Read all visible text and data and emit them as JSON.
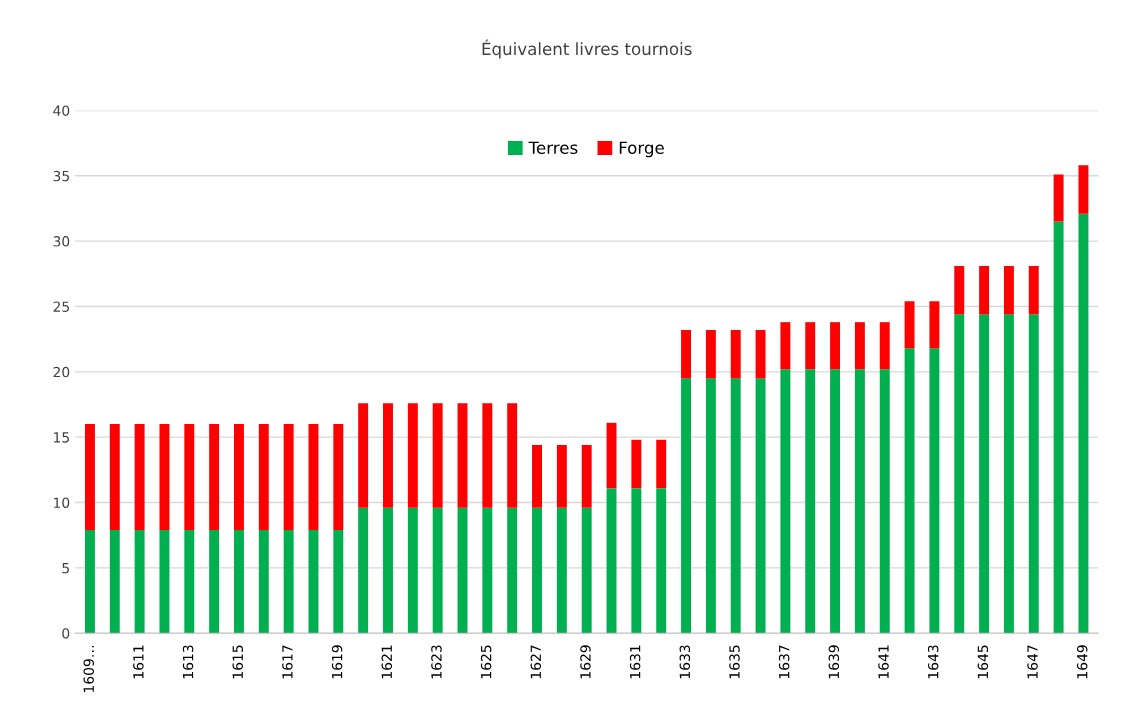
{
  "chart_data": {
    "type": "bar",
    "title": "Équivalent livres tournois",
    "stacked": true,
    "categories": [
      "1609…",
      null,
      "1611",
      null,
      "1613",
      null,
      "1615",
      null,
      "1617",
      null,
      "1619",
      null,
      "1621",
      null,
      "1623",
      null,
      "1625",
      null,
      "1627",
      null,
      "1629",
      null,
      "1631",
      null,
      "1633",
      null,
      "1635",
      null,
      "1637",
      null,
      "1639",
      null,
      "1641",
      null,
      "1643",
      null,
      "1645",
      null,
      "1647",
      null,
      "1649"
    ],
    "series": [
      {
        "name": "Terres",
        "color": "#00b050",
        "values": [
          7.9,
          7.9,
          7.9,
          7.9,
          7.9,
          7.9,
          7.9,
          7.9,
          7.9,
          7.9,
          7.9,
          9.6,
          9.6,
          9.6,
          9.6,
          9.6,
          9.6,
          9.6,
          9.6,
          9.6,
          9.6,
          11.1,
          11.1,
          11.1,
          19.5,
          19.5,
          19.5,
          19.5,
          20.2,
          20.2,
          20.2,
          20.2,
          20.2,
          21.8,
          21.8,
          24.4,
          24.4,
          24.4,
          24.4,
          31.5,
          32.1
        ]
      },
      {
        "name": "Forge",
        "color": "#ff0000",
        "values": [
          8.1,
          8.1,
          8.1,
          8.1,
          8.1,
          8.1,
          8.1,
          8.1,
          8.1,
          8.1,
          8.1,
          8.0,
          8.0,
          8.0,
          8.0,
          8.0,
          8.0,
          8.0,
          4.8,
          4.8,
          4.8,
          5.0,
          3.7,
          3.7,
          3.7,
          3.7,
          3.7,
          3.7,
          3.6,
          3.6,
          3.6,
          3.6,
          3.6,
          3.6,
          3.6,
          3.7,
          3.7,
          3.7,
          3.7,
          3.6,
          3.7
        ]
      }
    ],
    "ylim": [
      0,
      40
    ],
    "yticks": [
      0,
      5,
      10,
      15,
      20,
      25,
      30,
      35,
      40
    ],
    "grid": "y",
    "legend": "top"
  }
}
